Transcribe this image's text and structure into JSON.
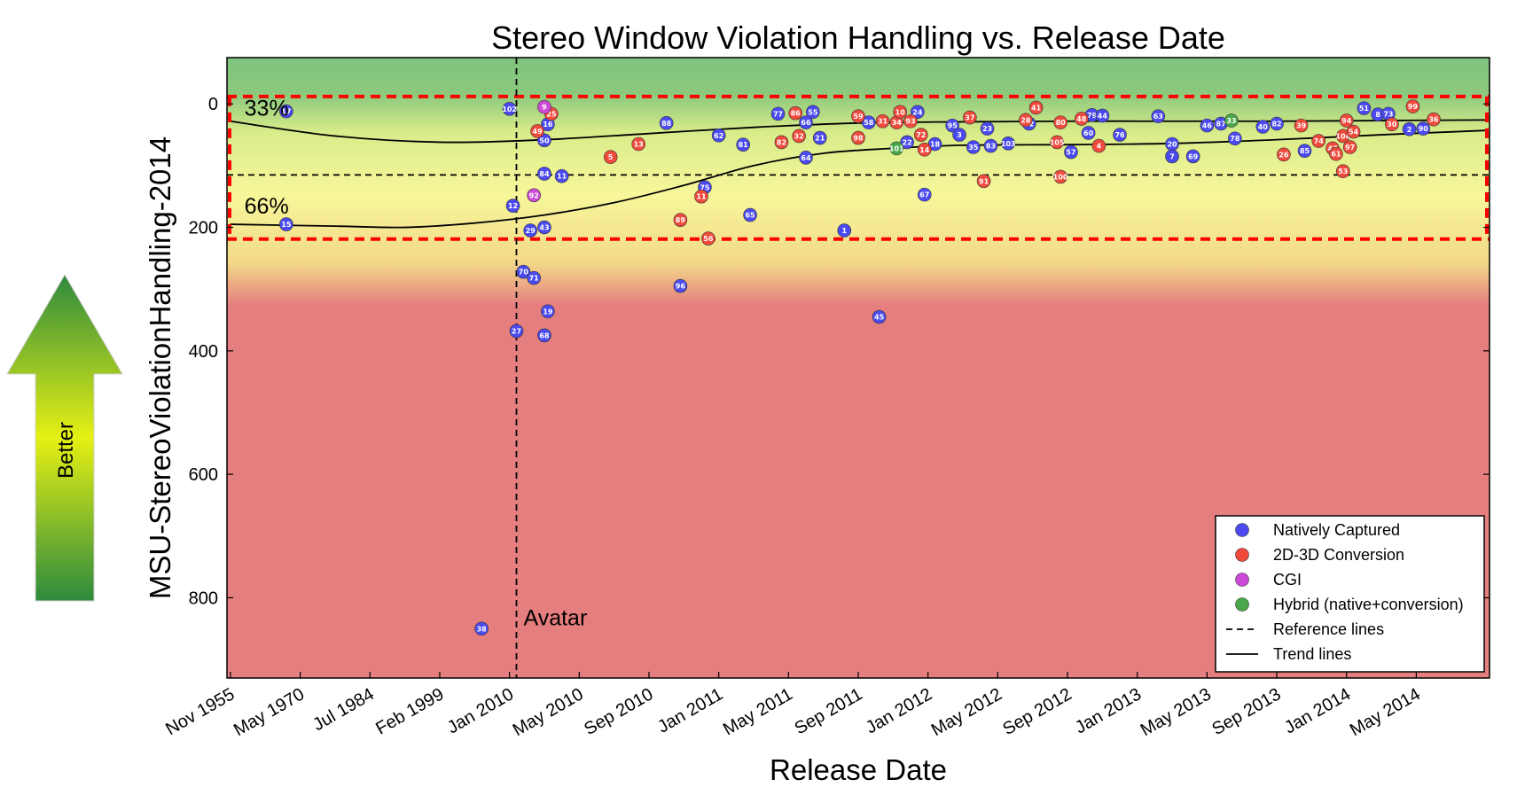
{
  "colors": {
    "natively_captured": "#4a4af0",
    "conversion_2d3d": "#f04a3c",
    "cgi": "#cc4ad8",
    "hybrid": "#4aa84a",
    "good_zone": "#7fc37f",
    "mid_zone": "#f7f79a",
    "bad_zone": "#e57e7e",
    "reference_red": "#ff0000"
  },
  "chart_data": {
    "type": "scatter",
    "title": "Stereo Window Violation Handling vs. Release Date",
    "xlabel": "Release Date",
    "ylabel": "MSU-StereoViolationHandling-2014",
    "x_tick_labels": [
      "Nov 1955",
      "May 1970",
      "Jul 1984",
      "Feb 1999",
      "Jan 2010",
      "May 2010",
      "Sep 2010",
      "Jan 2011",
      "May 2011",
      "Sep 2011",
      "Jan 2012",
      "May 2012",
      "Sep 2012",
      "Jan 2013",
      "May 2013",
      "Sep 2013",
      "Jan 2014",
      "May 2014"
    ],
    "x_scale": "categorical date ticks, evenly spaced",
    "x_range": [
      -0.05,
      18.05
    ],
    "y_ticks": [
      0,
      200,
      400,
      600,
      800
    ],
    "ylim": [
      930,
      -75
    ],
    "y_inverted": true,
    "grid": false,
    "legend": {
      "position": "bottom-right",
      "entries": [
        {
          "label": "Natively Captured",
          "kind": "marker",
          "color_key": "natively_captured"
        },
        {
          "label": "2D-3D Conversion",
          "kind": "marker",
          "color_key": "conversion_2d3d"
        },
        {
          "label": "CGI",
          "kind": "marker",
          "color_key": "cgi"
        },
        {
          "label": "Hybrid (native+conversion)",
          "kind": "marker",
          "color_key": "hybrid"
        },
        {
          "label": "Reference lines",
          "kind": "dashed"
        },
        {
          "label": "Trend lines",
          "kind": "solid"
        }
      ]
    },
    "annotations": {
      "avatar_label": "Avatar",
      "avatar_x": 4.1,
      "pct33_label": "33%",
      "pct66_label": "66%",
      "pct_label_x": 0.2
    },
    "reference_lines": {
      "horizontal_black_dashed_y": 115,
      "red_dashed_box_y": [
        -12,
        219
      ],
      "vertical_black_dashed_x": 4.1
    },
    "trend_lines": [
      {
        "name": "33%",
        "points": [
          [
            0.0,
            28
          ],
          [
            1.5,
            52
          ],
          [
            3.0,
            62
          ],
          [
            4.5,
            58
          ],
          [
            6.0,
            48
          ],
          [
            7.5,
            38
          ],
          [
            9.0,
            31
          ],
          [
            10.5,
            29
          ],
          [
            12.0,
            28
          ],
          [
            13.5,
            28
          ],
          [
            15.0,
            28
          ],
          [
            16.5,
            27
          ],
          [
            18.0,
            26
          ]
        ]
      },
      {
        "name": "66%",
        "points": [
          [
            0.0,
            195
          ],
          [
            1.5,
            198
          ],
          [
            2.5,
            200
          ],
          [
            3.5,
            193
          ],
          [
            4.5,
            180
          ],
          [
            5.5,
            160
          ],
          [
            6.5,
            132
          ],
          [
            7.5,
            100
          ],
          [
            8.5,
            80
          ],
          [
            9.5,
            72
          ],
          [
            10.5,
            67
          ],
          [
            12.0,
            66
          ],
          [
            13.5,
            64
          ],
          [
            15.0,
            58
          ],
          [
            16.5,
            50
          ],
          [
            18.0,
            43
          ]
        ]
      }
    ],
    "series": [
      {
        "name": "Natively Captured",
        "color_key": "natively_captured",
        "points": [
          {
            "label": "17",
            "x": 0.8,
            "y": 12
          },
          {
            "label": "15",
            "x": 0.8,
            "y": 195
          },
          {
            "label": "38",
            "x": 3.6,
            "y": 850
          },
          {
            "label": "102",
            "x": 4.0,
            "y": 8
          },
          {
            "label": "12",
            "x": 4.05,
            "y": 165
          },
          {
            "label": "27",
            "x": 4.1,
            "y": 368
          },
          {
            "label": "70",
            "x": 4.2,
            "y": 272
          },
          {
            "label": "29",
            "x": 4.3,
            "y": 205
          },
          {
            "label": "71",
            "x": 4.35,
            "y": 282
          },
          {
            "label": "16",
            "x": 4.55,
            "y": 33
          },
          {
            "label": "50",
            "x": 4.5,
            "y": 59
          },
          {
            "label": "84",
            "x": 4.5,
            "y": 113
          },
          {
            "label": "43",
            "x": 4.5,
            "y": 200
          },
          {
            "label": "19",
            "x": 4.55,
            "y": 336
          },
          {
            "label": "68",
            "x": 4.5,
            "y": 375
          },
          {
            "label": "11",
            "x": 4.75,
            "y": 117
          },
          {
            "label": "88",
            "x": 6.25,
            "y": 31
          },
          {
            "label": "75",
            "x": 6.8,
            "y": 135
          },
          {
            "label": "96",
            "x": 6.45,
            "y": 295
          },
          {
            "label": "62",
            "x": 7.0,
            "y": 51
          },
          {
            "label": "81",
            "x": 7.35,
            "y": 66
          },
          {
            "label": "65",
            "x": 7.45,
            "y": 180
          },
          {
            "label": "77",
            "x": 7.85,
            "y": 16
          },
          {
            "label": "55",
            "x": 8.35,
            "y": 13
          },
          {
            "label": "66",
            "x": 8.25,
            "y": 30
          },
          {
            "label": "21",
            "x": 8.45,
            "y": 55
          },
          {
            "label": "64",
            "x": 8.25,
            "y": 87
          },
          {
            "label": "1",
            "x": 8.8,
            "y": 205
          },
          {
            "label": "58",
            "x": 9.15,
            "y": 30
          },
          {
            "label": "45",
            "x": 9.3,
            "y": 345
          },
          {
            "label": "24",
            "x": 9.85,
            "y": 13
          },
          {
            "label": "22",
            "x": 9.7,
            "y": 62
          },
          {
            "label": "67",
            "x": 9.95,
            "y": 147
          },
          {
            "label": "18",
            "x": 10.1,
            "y": 65
          },
          {
            "label": "95",
            "x": 10.35,
            "y": 35
          },
          {
            "label": "3",
            "x": 10.45,
            "y": 50
          },
          {
            "label": "35",
            "x": 10.65,
            "y": 70
          },
          {
            "label": "23",
            "x": 10.85,
            "y": 40
          },
          {
            "label": "83",
            "x": 10.9,
            "y": 68
          },
          {
            "label": "103",
            "x": 11.15,
            "y": 64
          },
          {
            "label": "42",
            "x": 11.45,
            "y": 32
          },
          {
            "label": "57",
            "x": 12.05,
            "y": 78
          },
          {
            "label": "79",
            "x": 12.35,
            "y": 18
          },
          {
            "label": "44",
            "x": 12.5,
            "y": 19
          },
          {
            "label": "60",
            "x": 12.3,
            "y": 47
          },
          {
            "label": "76",
            "x": 12.75,
            "y": 50
          },
          {
            "label": "63",
            "x": 13.3,
            "y": 20
          },
          {
            "label": "20",
            "x": 13.5,
            "y": 65
          },
          {
            "label": "7",
            "x": 13.5,
            "y": 85
          },
          {
            "label": "69",
            "x": 13.8,
            "y": 85
          },
          {
            "label": "46",
            "x": 14.0,
            "y": 35
          },
          {
            "label": "87",
            "x": 14.2,
            "y": 32
          },
          {
            "label": "78",
            "x": 14.4,
            "y": 56
          },
          {
            "label": "40",
            "x": 14.8,
            "y": 37
          },
          {
            "label": "82",
            "x": 15.0,
            "y": 32
          },
          {
            "label": "85",
            "x": 15.4,
            "y": 76
          },
          {
            "label": "51",
            "x": 16.25,
            "y": 7
          },
          {
            "label": "8",
            "x": 16.45,
            "y": 17
          },
          {
            "label": "73",
            "x": 16.6,
            "y": 16
          },
          {
            "label": "2",
            "x": 16.9,
            "y": 41
          },
          {
            "label": "90",
            "x": 17.1,
            "y": 40
          }
        ]
      },
      {
        "name": "2D-3D Conversion",
        "color_key": "conversion_2d3d",
        "points": [
          {
            "label": "49",
            "x": 4.4,
            "y": 44
          },
          {
            "label": "25",
            "x": 4.6,
            "y": 16
          },
          {
            "label": "5",
            "x": 5.45,
            "y": 86
          },
          {
            "label": "13",
            "x": 5.85,
            "y": 65
          },
          {
            "label": "89",
            "x": 6.45,
            "y": 188
          },
          {
            "label": "11",
            "x": 6.75,
            "y": 150
          },
          {
            "label": "56",
            "x": 6.85,
            "y": 218
          },
          {
            "label": "86",
            "x": 8.1,
            "y": 15
          },
          {
            "label": "32",
            "x": 8.15,
            "y": 52
          },
          {
            "label": "82",
            "x": 7.9,
            "y": 62
          },
          {
            "label": "59",
            "x": 9.0,
            "y": 20
          },
          {
            "label": "98",
            "x": 9.0,
            "y": 55
          },
          {
            "label": "31",
            "x": 9.35,
            "y": 28
          },
          {
            "label": "34",
            "x": 9.55,
            "y": 30
          },
          {
            "label": "10",
            "x": 9.6,
            "y": 13
          },
          {
            "label": "93",
            "x": 9.75,
            "y": 28
          },
          {
            "label": "72",
            "x": 9.9,
            "y": 50
          },
          {
            "label": "14",
            "x": 9.95,
            "y": 74
          },
          {
            "label": "37",
            "x": 10.6,
            "y": 22
          },
          {
            "label": "91",
            "x": 10.8,
            "y": 125
          },
          {
            "label": "28",
            "x": 11.4,
            "y": 26
          },
          {
            "label": "41",
            "x": 11.55,
            "y": 6
          },
          {
            "label": "80",
            "x": 11.9,
            "y": 30
          },
          {
            "label": "105",
            "x": 11.85,
            "y": 62
          },
          {
            "label": "100",
            "x": 11.9,
            "y": 118
          },
          {
            "label": "48",
            "x": 12.2,
            "y": 24
          },
          {
            "label": "4",
            "x": 12.45,
            "y": 68
          },
          {
            "label": "39",
            "x": 15.35,
            "y": 35
          },
          {
            "label": "26",
            "x": 15.1,
            "y": 82
          },
          {
            "label": "74",
            "x": 15.6,
            "y": 60
          },
          {
            "label": "104",
            "x": 15.95,
            "y": 52
          },
          {
            "label": "47",
            "x": 15.8,
            "y": 72
          },
          {
            "label": "94",
            "x": 16.0,
            "y": 27
          },
          {
            "label": "54",
            "x": 16.1,
            "y": 45
          },
          {
            "label": "97",
            "x": 16.05,
            "y": 70
          },
          {
            "label": "61",
            "x": 15.85,
            "y": 81
          },
          {
            "label": "53",
            "x": 15.95,
            "y": 109
          },
          {
            "label": "30",
            "x": 16.65,
            "y": 33
          },
          {
            "label": "99",
            "x": 16.95,
            "y": 4
          },
          {
            "label": "36",
            "x": 17.25,
            "y": 25
          }
        ]
      },
      {
        "name": "CGI",
        "color_key": "cgi",
        "points": [
          {
            "label": "9",
            "x": 4.5,
            "y": 5
          },
          {
            "label": "92",
            "x": 4.35,
            "y": 148
          }
        ]
      },
      {
        "name": "Hybrid (native+conversion)",
        "color_key": "hybrid",
        "points": [
          {
            "label": "101",
            "x": 9.55,
            "y": 72
          },
          {
            "label": "33",
            "x": 14.35,
            "y": 27
          }
        ]
      }
    ]
  },
  "side_arrow": {
    "label": "Better"
  }
}
